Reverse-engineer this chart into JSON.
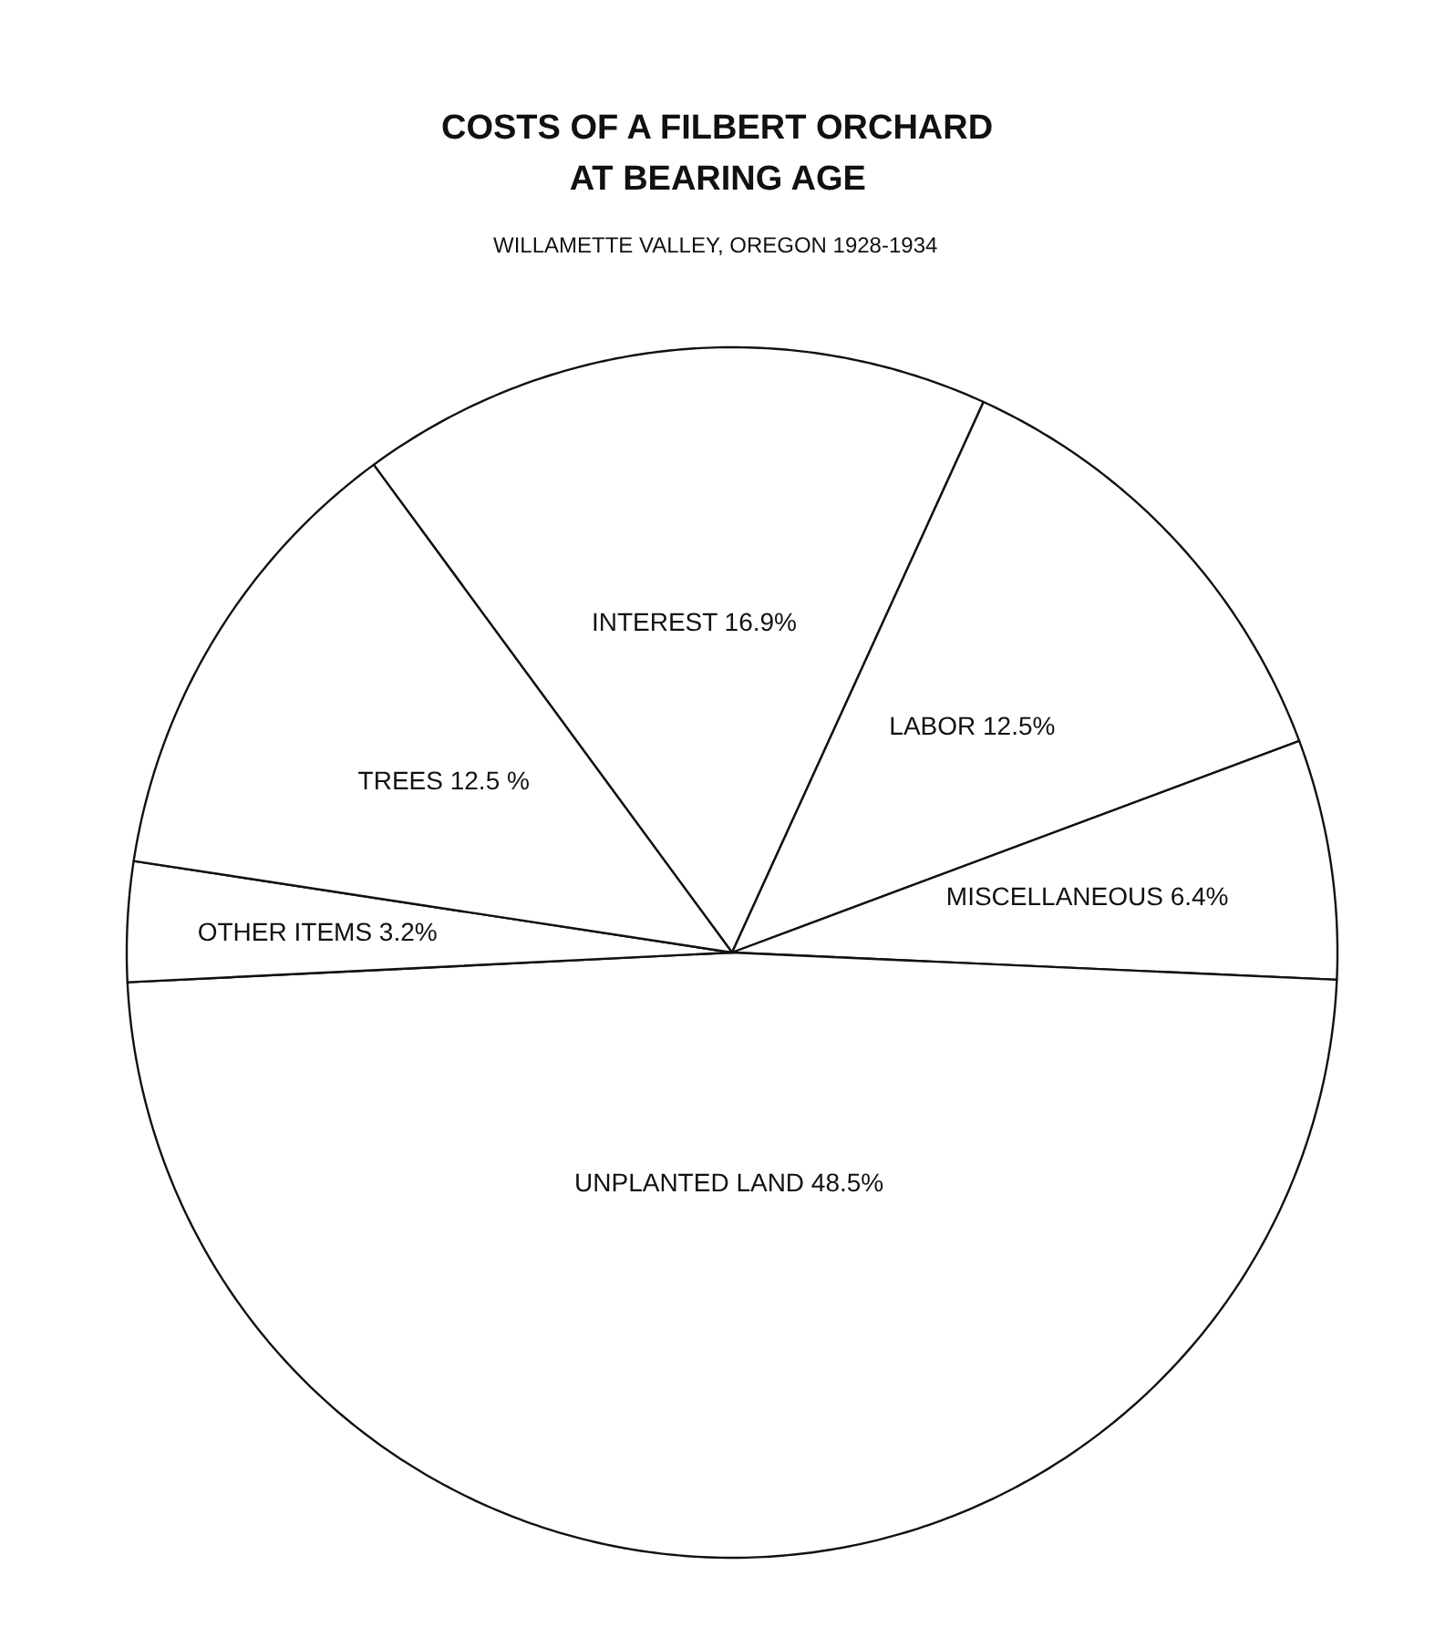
{
  "chart_data": {
    "type": "pie",
    "title": "COSTS OF A FILBERT ORCHARD\nAT BEARING AGE",
    "subtitle": "WILLAMETTE VALLEY, OREGON  1928-1934",
    "categories": [
      "INTEREST",
      "LABOR",
      "MISCELLANEOUS",
      "UNPLANTED LAND",
      "OTHER ITEMS",
      "TREES"
    ],
    "values": [
      16.9,
      12.5,
      6.4,
      48.5,
      3.2,
      12.5
    ],
    "value_labels": [
      "16.9%",
      "12.5%",
      "6.4%",
      "48.5%",
      "3.2%",
      "12.5 %"
    ],
    "colors": [
      "#ffffff",
      "#ffffff",
      "#ffffff",
      "#ffffff",
      "#ffffff",
      "#ffffff"
    ]
  }
}
